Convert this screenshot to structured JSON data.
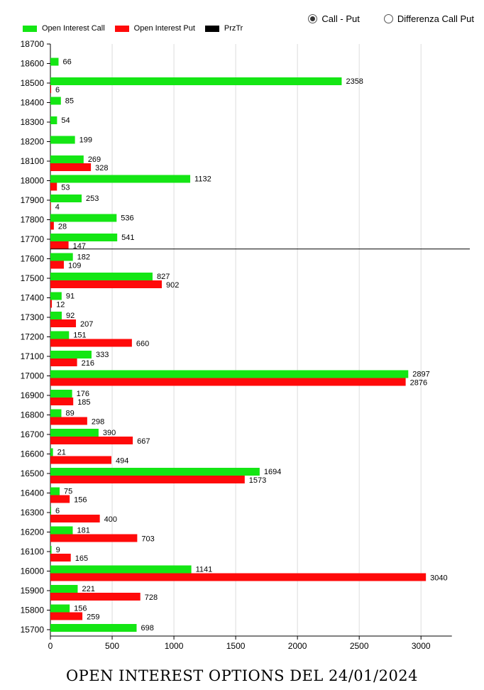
{
  "legend": {
    "items": [
      {
        "label": "Open Interest Call",
        "color": "#14e614"
      },
      {
        "label": "Open Interest Put",
        "color": "#ff0a0a"
      },
      {
        "label": "PrzTr",
        "color": "#000000"
      }
    ]
  },
  "view_options": {
    "call_put": {
      "label": "Call - Put",
      "selected": true
    },
    "diff_call_put": {
      "label": "Differenza Call Put",
      "selected": false
    }
  },
  "chart_title": "OPEN INTEREST OPTIONS DEL 24/01/2024",
  "chart_data": {
    "type": "bar",
    "orientation": "horizontal",
    "categories": [
      "18700",
      "18600",
      "18500",
      "18400",
      "18300",
      "18200",
      "18100",
      "18000",
      "17900",
      "17800",
      "17700",
      "17600",
      "17500",
      "17400",
      "17300",
      "17200",
      "17100",
      "17000",
      "16900",
      "16800",
      "16700",
      "16600",
      "16500",
      "16400",
      "16300",
      "16200",
      "16100",
      "16000",
      "15900",
      "15800",
      "15700"
    ],
    "series": [
      {
        "name": "Open Interest Call",
        "color": "#14e614",
        "values": [
          null,
          66,
          2358,
          85,
          54,
          199,
          269,
          1132,
          253,
          536,
          541,
          182,
          827,
          91,
          92,
          151,
          333,
          2897,
          176,
          89,
          390,
          21,
          1694,
          75,
          6,
          181,
          9,
          1141,
          221,
          156,
          698
        ]
      },
      {
        "name": "Open Interest Put",
        "color": "#ff0a0a",
        "values": [
          null,
          null,
          6,
          null,
          null,
          null,
          328,
          53,
          4,
          28,
          147,
          109,
          902,
          12,
          207,
          660,
          216,
          2876,
          185,
          298,
          667,
          494,
          1573,
          156,
          400,
          703,
          165,
          3040,
          728,
          259,
          null
        ]
      }
    ],
    "reference_line": {
      "name": "PrzTr",
      "value": 17650
    },
    "xlim": [
      0,
      3250
    ],
    "xticks": [
      "0",
      "500",
      "1000",
      "1500",
      "2000",
      "2500",
      "3000"
    ],
    "grid": "vertical",
    "legend_position": "top-left"
  }
}
